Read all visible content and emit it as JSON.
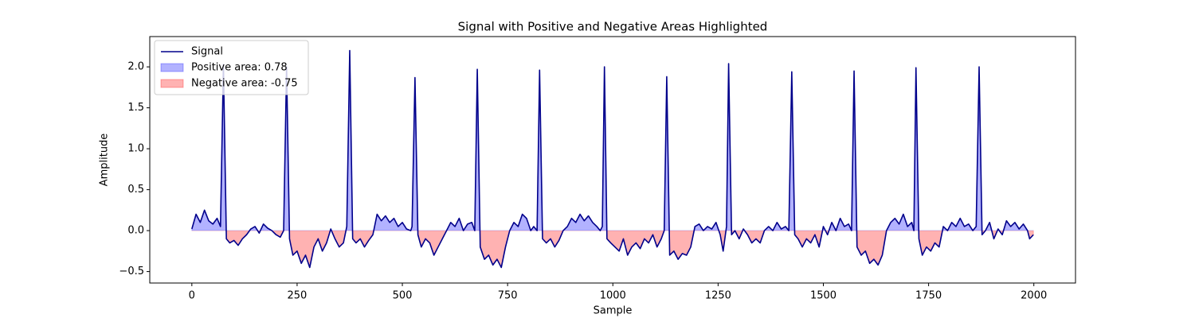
{
  "chart_data": {
    "type": "area-line",
    "title": "Signal with Positive and Negative Areas Highlighted",
    "x_label": "Sample",
    "y_label": "Amplitude",
    "xlim": [
      -99.95,
      2098.95
    ],
    "ylim": [
      -0.64,
      2.37
    ],
    "xticks": [
      0,
      250,
      500,
      750,
      1000,
      1250,
      1500,
      1750,
      2000
    ],
    "yticks": [
      {
        "value": -0.5,
        "label": "−0.5"
      },
      {
        "value": 0,
        "label": "0.0"
      },
      {
        "value": 0.5,
        "label": "0.5"
      },
      {
        "value": 1,
        "label": "1.0"
      },
      {
        "value": 1.5,
        "label": "1.5"
      },
      {
        "value": 2,
        "label": "2.0"
      }
    ],
    "legend": "upper left",
    "fills": [
      {
        "name": "Positive area: 0.78",
        "color": "#0000ff",
        "side": "positive"
      },
      {
        "name": "Negative area: -0.75",
        "color": "#ff0000",
        "side": "negative"
      }
    ],
    "series": [
      {
        "name": "Signal",
        "color": "#00008b",
        "x": [
          0,
          10,
          20,
          30,
          40,
          50,
          60,
          68,
          75,
          82,
          90,
          100,
          110,
          120,
          130,
          140,
          150,
          160,
          170,
          180,
          190,
          200,
          210,
          218,
          225,
          232,
          240,
          250,
          260,
          270,
          280,
          290,
          300,
          310,
          320,
          330,
          340,
          350,
          360,
          368,
          375,
          382,
          390,
          400,
          410,
          420,
          430,
          440,
          450,
          460,
          470,
          480,
          490,
          500,
          510,
          520,
          523,
          530,
          537,
          545,
          555,
          565,
          575,
          585,
          595,
          605,
          615,
          625,
          635,
          645,
          655,
          665,
          672,
          678,
          685,
          695,
          705,
          715,
          725,
          735,
          745,
          755,
          765,
          775,
          785,
          795,
          805,
          812,
          820,
          826,
          833,
          842,
          852,
          862,
          872,
          882,
          892,
          902,
          912,
          922,
          932,
          942,
          952,
          962,
          970,
          975,
          980,
          986,
          995,
          1005,
          1015,
          1025,
          1035,
          1045,
          1055,
          1065,
          1075,
          1085,
          1095,
          1105,
          1115,
          1122,
          1128,
          1135,
          1145,
          1155,
          1165,
          1175,
          1185,
          1195,
          1205,
          1215,
          1225,
          1235,
          1245,
          1255,
          1262,
          1270,
          1275,
          1282,
          1290,
          1300,
          1310,
          1320,
          1330,
          1340,
          1350,
          1360,
          1370,
          1380,
          1390,
          1400,
          1410,
          1418,
          1425,
          1432,
          1440,
          1450,
          1460,
          1470,
          1480,
          1490,
          1500,
          1510,
          1520,
          1530,
          1540,
          1550,
          1560,
          1567,
          1573,
          1580,
          1590,
          1600,
          1610,
          1620,
          1630,
          1640,
          1650,
          1660,
          1670,
          1680,
          1690,
          1700,
          1710,
          1715,
          1720,
          1727,
          1735,
          1745,
          1755,
          1765,
          1775,
          1785,
          1795,
          1805,
          1815,
          1825,
          1835,
          1845,
          1855,
          1863,
          1870,
          1877,
          1885,
          1895,
          1905,
          1915,
          1925,
          1935,
          1945,
          1955,
          1965,
          1975,
          1985,
          1990,
          1999
        ],
        "values": [
          0.02,
          0.2,
          0.1,
          0.25,
          0.12,
          0.08,
          0.15,
          0.05,
          2.03,
          -0.1,
          -0.15,
          -0.12,
          -0.18,
          -0.1,
          -0.05,
          0.02,
          0.05,
          -0.03,
          0.08,
          0.03,
          0.0,
          -0.05,
          -0.08,
          0.0,
          2.0,
          -0.1,
          -0.3,
          -0.25,
          -0.4,
          -0.3,
          -0.45,
          -0.2,
          -0.1,
          -0.25,
          -0.15,
          0.02,
          -0.1,
          -0.2,
          -0.15,
          0.05,
          2.2,
          -0.1,
          -0.15,
          -0.1,
          -0.2,
          -0.12,
          -0.05,
          0.2,
          0.12,
          0.18,
          0.1,
          0.15,
          0.05,
          0.1,
          0.02,
          0.0,
          0.05,
          1.87,
          -0.05,
          -0.2,
          -0.1,
          -0.15,
          -0.3,
          -0.2,
          -0.1,
          0.0,
          0.1,
          0.05,
          0.15,
          0.0,
          0.08,
          0.1,
          0.0,
          1.97,
          -0.2,
          -0.35,
          -0.3,
          -0.42,
          -0.35,
          -0.45,
          -0.2,
          0.0,
          0.1,
          0.05,
          0.2,
          0.15,
          0.0,
          0.05,
          0.0,
          1.96,
          -0.1,
          -0.15,
          -0.1,
          -0.2,
          -0.12,
          0.0,
          0.05,
          0.15,
          0.1,
          0.2,
          0.12,
          0.18,
          0.1,
          0.05,
          0.0,
          0.05,
          2.0,
          -0.1,
          -0.15,
          -0.2,
          -0.25,
          -0.1,
          -0.3,
          -0.2,
          -0.15,
          -0.22,
          -0.1,
          -0.15,
          -0.05,
          -0.2,
          -0.1,
          0.0,
          1.88,
          -0.3,
          -0.25,
          -0.35,
          -0.28,
          -0.3,
          -0.2,
          0.05,
          0.08,
          0.0,
          0.05,
          0.02,
          0.1,
          -0.05,
          -0.25,
          0.05,
          2.04,
          -0.05,
          0.0,
          -0.1,
          0.02,
          -0.05,
          -0.15,
          -0.1,
          -0.15,
          0.0,
          0.05,
          0.0,
          0.1,
          0.02,
          0.05,
          0.0,
          1.94,
          -0.05,
          -0.1,
          -0.2,
          -0.1,
          -0.15,
          -0.05,
          -0.2,
          0.05,
          -0.05,
          0.1,
          0.0,
          0.15,
          0.05,
          0.08,
          0.0,
          1.95,
          -0.2,
          -0.3,
          -0.25,
          -0.4,
          -0.35,
          -0.42,
          -0.3,
          0.0,
          0.1,
          0.15,
          0.08,
          0.2,
          0.05,
          0.1,
          0.0,
          1.99,
          -0.1,
          -0.3,
          -0.2,
          -0.25,
          -0.15,
          -0.2,
          0.05,
          0.0,
          0.1,
          0.05,
          0.15,
          0.05,
          0.08,
          0.0,
          0.05,
          2.0,
          -0.05,
          0.0,
          0.1,
          -0.1,
          0.02,
          -0.05,
          0.12,
          0.05,
          0.1,
          0.02,
          0.08,
          0.0,
          -0.1,
          -0.05
        ]
      }
    ]
  }
}
